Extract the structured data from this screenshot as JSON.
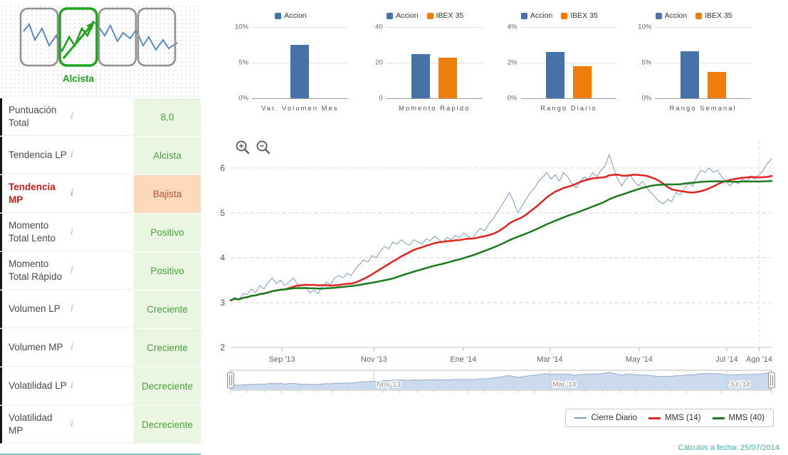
{
  "pattern": {
    "label": "Alcista"
  },
  "info_glyph": "i",
  "indicators": [
    {
      "id": "puntuacion-total",
      "label": "Puntuación Total",
      "value": "8,0",
      "state": "positive",
      "highlight": false
    },
    {
      "id": "tendencia-lp",
      "label": "Tendencia LP",
      "value": "Alcista",
      "state": "positive",
      "highlight": false
    },
    {
      "id": "tendencia-mp",
      "label": "Tendencia MP",
      "value": "Bajista",
      "state": "negative",
      "highlight": true
    },
    {
      "id": "momento-total-lento",
      "label": "Momento Total Lento",
      "value": "Positivo",
      "state": "positive",
      "highlight": false
    },
    {
      "id": "momento-total-rapido",
      "label": "Momento Total Rápido",
      "value": "Positivo",
      "state": "positive",
      "highlight": false
    },
    {
      "id": "volumen-lp",
      "label": "Volumen LP",
      "value": "Creciente",
      "state": "positive",
      "highlight": false
    },
    {
      "id": "volumen-mp",
      "label": "Volumen MP",
      "value": "Creciente",
      "state": "positive",
      "highlight": false
    },
    {
      "id": "volatilidad-lp",
      "label": "Volatilidad LP",
      "value": "Decreciente",
      "state": "positive",
      "highlight": false
    },
    {
      "id": "volatilidad-mp",
      "label": "Volatilidad MP",
      "value": "Decreciente",
      "state": "positive",
      "highlight": false
    }
  ],
  "colors": {
    "positive_bg": "#eaf6e1",
    "positive_text": "#49a33b",
    "negative_bg": "#fcd9b8",
    "negative_text": "#b9543c",
    "accion": "#4572a7",
    "ibex": "#ee7d0c",
    "price_line": "#7d9ac6",
    "mms14": "#e3231e",
    "mms40": "#1b7a1b",
    "footer": "#43b2a5"
  },
  "footer": {
    "text": "Cálculos a fecha: 25/07/2014"
  },
  "chart_data": [
    {
      "id": "var-volumen-mes",
      "type": "bar",
      "title": "Var. Volumen Mes",
      "ylim": [
        0,
        10
      ],
      "yticks": [
        "0%",
        "5%",
        "10%"
      ],
      "series": [
        {
          "name": "Accion",
          "value": 7.5,
          "color": "#4572a7"
        }
      ]
    },
    {
      "id": "momento-rapido",
      "type": "bar",
      "title": "Momento Rápido",
      "ylim": [
        0,
        40
      ],
      "yticks": [
        "0",
        "20",
        "40"
      ],
      "series": [
        {
          "name": "Accion",
          "value": 25,
          "color": "#4572a7"
        },
        {
          "name": "IBEX 35",
          "value": 23,
          "color": "#ee7d0c"
        }
      ]
    },
    {
      "id": "rango-diario",
      "type": "bar",
      "title": "Rango Diario",
      "ylim": [
        0,
        4
      ],
      "yticks": [
        "0%",
        "2%",
        "4%"
      ],
      "series": [
        {
          "name": "Accion",
          "value": 2.6,
          "color": "#4572a7"
        },
        {
          "name": "IBEX 35",
          "value": 1.8,
          "color": "#ee7d0c"
        }
      ]
    },
    {
      "id": "rango-semanal",
      "type": "bar",
      "title": "Rango Semanal",
      "ylim": [
        0,
        10
      ],
      "yticks": [
        "0%",
        "5%",
        "10%"
      ],
      "series": [
        {
          "name": "Accion",
          "value": 6.6,
          "color": "#4572a7"
        },
        {
          "name": "IBEX 35",
          "value": 3.7,
          "color": "#ee7d0c"
        }
      ]
    },
    {
      "id": "precio",
      "type": "line",
      "ylim": [
        2,
        6.6
      ],
      "yticks": [
        2,
        3,
        4,
        5,
        6
      ],
      "xticks": [
        {
          "label": "Sep '13",
          "f": 0.095
        },
        {
          "label": "Nov '13",
          "f": 0.265
        },
        {
          "label": "Ene '14",
          "f": 0.43
        },
        {
          "label": "Mar '14",
          "f": 0.59
        },
        {
          "label": "May '14",
          "f": 0.755
        },
        {
          "label": "Jul '14",
          "f": 0.917
        },
        {
          "label": "Ago '14",
          "f": 0.977
        }
      ],
      "series": [
        {
          "name": "Cierre Diario",
          "color": "#7d9ac6",
          "width": 1,
          "values": [
            3.05,
            3.12,
            3.05,
            3.2,
            3.18,
            3.3,
            3.22,
            3.38,
            3.3,
            3.45,
            3.55,
            3.42,
            3.5,
            3.38,
            3.45,
            3.55,
            3.42,
            3.3,
            3.35,
            3.22,
            3.28,
            3.2,
            3.35,
            3.45,
            3.4,
            3.55,
            3.6,
            3.55,
            3.65,
            3.6,
            3.75,
            3.85,
            3.95,
            3.9,
            4.05,
            4.0,
            4.15,
            4.25,
            4.2,
            4.35,
            4.3,
            4.4,
            4.32,
            4.28,
            4.4,
            4.35,
            4.3,
            4.42,
            4.38,
            4.48,
            4.4,
            4.35,
            4.45,
            4.4,
            4.5,
            4.45,
            4.55,
            4.48,
            4.42,
            4.55,
            4.65,
            4.6,
            4.75,
            4.85,
            5.0,
            5.15,
            5.3,
            5.45,
            5.25,
            5.0,
            5.15,
            5.3,
            5.45,
            5.55,
            5.7,
            5.8,
            5.9,
            5.75,
            5.85,
            5.7,
            5.9,
            5.8,
            5.65,
            5.55,
            5.7,
            5.8,
            5.75,
            5.9,
            5.8,
            5.95,
            6.05,
            6.3,
            6.0,
            5.75,
            5.6,
            5.75,
            5.85,
            5.7,
            5.6,
            5.7,
            5.55,
            5.45,
            5.35,
            5.25,
            5.2,
            5.3,
            5.25,
            5.45,
            5.4,
            5.55,
            5.65,
            5.6,
            5.8,
            5.95,
            5.9,
            6.0,
            5.9,
            5.95,
            5.8,
            5.7,
            5.6,
            5.7,
            5.65,
            5.75,
            5.7,
            5.8,
            5.75,
            5.85,
            5.95,
            6.1,
            6.2
          ]
        },
        {
          "name": "MMS (14)",
          "color": "#e3231e",
          "width": 2.5,
          "sma": 14
        },
        {
          "name": "MMS (40)",
          "color": "#1b7a1b",
          "width": 2.5,
          "sma": 40
        }
      ],
      "navigator": {
        "fill": "#ccdaee",
        "line": "#97abc9",
        "ticks": [
          {
            "label": "Nov '13",
            "f": 0.265
          },
          {
            "label": "Mar '14",
            "f": 0.59
          },
          {
            "label": "Jul '14",
            "f": 0.917
          }
        ]
      }
    }
  ]
}
